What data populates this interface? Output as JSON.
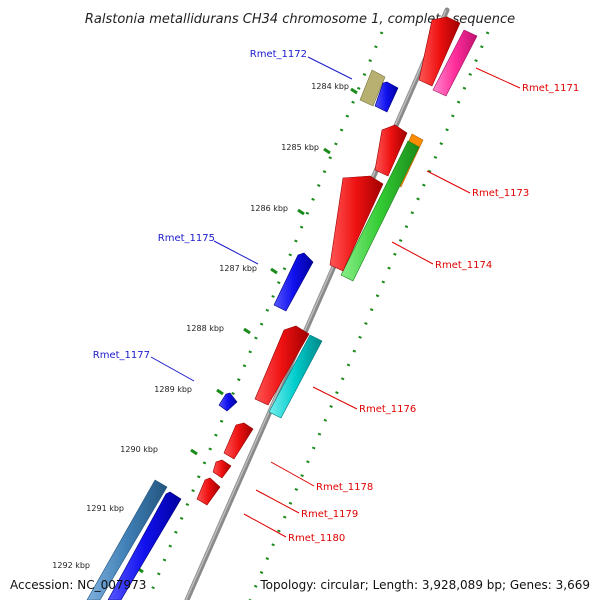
{
  "title": "Ralstonia metallidurans CH34 chromosome 1, complete sequence",
  "footer": {
    "accession": "Accession: NC_007973",
    "summary": "Topology: circular; Length: 3,928,089 bp; Genes: 3,669"
  },
  "ticks": [
    {
      "label": "1284 kbp"
    },
    {
      "label": "1285 kbp"
    },
    {
      "label": "1286 kbp"
    },
    {
      "label": "1287 kbp"
    },
    {
      "label": "1288 kbp"
    },
    {
      "label": "1289 kbp"
    },
    {
      "label": "1290 kbp"
    },
    {
      "label": "1291 kbp"
    },
    {
      "label": "1292 kbp"
    }
  ],
  "genes": [
    {
      "name": "Rmet_1171",
      "strand": "forward",
      "color": "#e00000"
    },
    {
      "name": "Rmet_1172",
      "strand": "reverse",
      "color": "#1a1acc"
    },
    {
      "name": "Rmet_1173",
      "strand": "forward",
      "color": "#e00000"
    },
    {
      "name": "Rmet_1174",
      "strand": "forward",
      "color": "#e00000"
    },
    {
      "name": "Rmet_1175",
      "strand": "reverse",
      "color": "#1a1acc"
    },
    {
      "name": "Rmet_1176",
      "strand": "forward",
      "color": "#e00000"
    },
    {
      "name": "Rmet_1177",
      "strand": "reverse",
      "color": "#1a1acc"
    },
    {
      "name": "Rmet_1178",
      "strand": "forward",
      "color": "#e00000"
    },
    {
      "name": "Rmet_1179",
      "strand": "forward",
      "color": "#e00000"
    },
    {
      "name": "Rmet_1180",
      "strand": "forward",
      "color": "#e00000"
    }
  ],
  "colors": {
    "backbone": "#8a8a8a",
    "forward_gene": "#ee1111",
    "reverse_gene": "#1111ee",
    "pink_feature": "#ff2d9a",
    "green_feature": "#33cc33",
    "orange_feature": "#ff8c00",
    "cyan_feature": "#00cccc",
    "olive_feature": "#b8b070",
    "steelblue_feature": "#3f7fb5",
    "tick_marks": "#1a8a1a"
  }
}
